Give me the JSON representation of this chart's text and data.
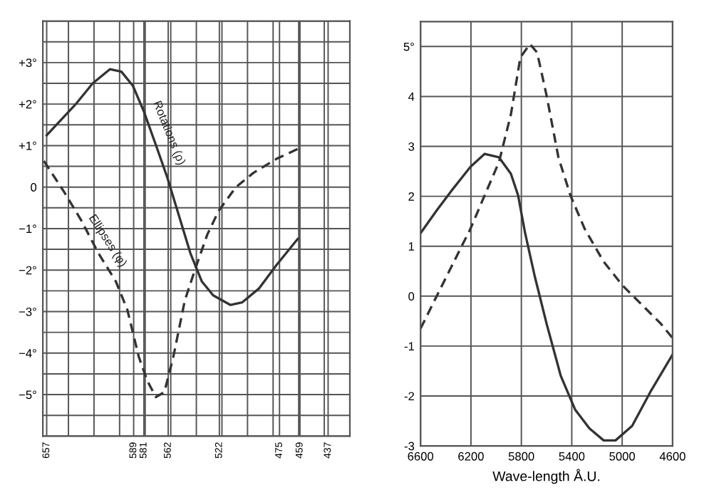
{
  "chart_data": [
    {
      "type": "line",
      "xlim": [
        660,
        420
      ],
      "ylim": [
        -6,
        4
      ],
      "grid": true,
      "xticks": [
        657,
        {
          "value": 640,
          "label": null
        },
        {
          "value": 620,
          "label": null
        },
        {
          "value": 600,
          "label": null
        },
        589,
        581,
        562,
        {
          "value": 580,
          "label": null
        },
        {
          "value": 560,
          "label": null
        },
        {
          "value": 540,
          "label": null
        },
        522,
        {
          "value": 520,
          "label": null
        },
        {
          "value": 500,
          "label": null
        },
        {
          "value": 480,
          "label": null
        },
        475,
        459,
        {
          "value": 460,
          "label": null
        },
        {
          "value": 440,
          "label": null
        },
        437
      ],
      "yticks": [
        {
          "value": -6,
          "label": null
        },
        {
          "value": -5.5,
          "label": null
        },
        {
          "value": -5,
          "label": "−5°"
        },
        {
          "value": -4.5,
          "label": null
        },
        {
          "value": -4,
          "label": "−4°"
        },
        {
          "value": -3.5,
          "label": null
        },
        {
          "value": -3,
          "label": "−3°"
        },
        {
          "value": -2.5,
          "label": null
        },
        {
          "value": -2,
          "label": "−2°"
        },
        {
          "value": -1.5,
          "label": null
        },
        {
          "value": -1,
          "label": "−1°"
        },
        {
          "value": -0.5,
          "label": null
        },
        0,
        {
          "value": 0.5,
          "label": null
        },
        {
          "value": 1,
          "label": "+1°"
        },
        {
          "value": 1.5,
          "label": null
        },
        {
          "value": 2,
          "label": "+2°"
        },
        {
          "value": 2.5,
          "label": null
        },
        {
          "value": 3,
          "label": "+3°"
        },
        {
          "value": 3.5,
          "label": null
        },
        {
          "value": 4,
          "label": null
        }
      ],
      "annotations": [
        "Rotations (ρ)",
        "Ellipses (φ)"
      ],
      "series": [
        {
          "color": "#333333",
          "line_style": "solid",
          "x": [
            657,
            634.5,
            621,
            607.6,
            598.6,
            589.6,
            581,
            571.7,
            562.7,
            553.7,
            544.7,
            535.8,
            526.8,
            513.3,
            504.3,
            490.9,
            477.4,
            460.8
          ],
          "values": [
            1.25,
            1.99,
            2.5,
            2.84,
            2.78,
            2.44,
            1.82,
            1.02,
            0.23,
            -0.68,
            -1.59,
            -2.27,
            -2.61,
            -2.84,
            -2.78,
            -2.44,
            -1.88,
            -1.25
          ]
        },
        {
          "color": "#333333",
          "line_style": "dashed",
          "x": [
            659.2,
            643.5,
            630,
            616.6,
            603,
            594,
            585,
            578.4,
            571.7,
            565,
            558,
            549,
            540.4,
            531.4,
            522.5,
            509,
            495.5,
            477.4,
            457.2
          ],
          "values": [
            0.63,
            -0.11,
            -0.8,
            -1.59,
            -2.27,
            -2.95,
            -4.09,
            -4.66,
            -5.06,
            -4.94,
            -4.09,
            -2.73,
            -1.93,
            -1.14,
            -0.57,
            0,
            0.34,
            0.68,
            0.97
          ]
        }
      ]
    },
    {
      "type": "line",
      "xlim": [
        6600,
        4600
      ],
      "ylim": [
        -3,
        5.5
      ],
      "grid": true,
      "xlabel": "Wave-length Å.U.",
      "xticks": [
        6600,
        6200,
        5800,
        5400,
        5000,
        4600
      ],
      "yticks": [
        -3,
        -2,
        -1,
        0,
        1,
        2,
        3,
        4,
        {
          "value": 5,
          "label": "5°"
        }
      ],
      "series": [
        {
          "color": "#333333",
          "line_style": "solid",
          "x": [
            6600,
            6468,
            6355,
            6204,
            6091,
            5977,
            5883,
            5826,
            5770,
            5694,
            5600,
            5487,
            5374,
            5260,
            5147,
            5053,
            4921,
            4770,
            4600
          ],
          "values": [
            1.26,
            1.73,
            2.11,
            2.59,
            2.85,
            2.78,
            2.45,
            2.02,
            1.26,
            0.4,
            -0.55,
            -1.6,
            -2.27,
            -2.65,
            -2.89,
            -2.89,
            -2.6,
            -1.89,
            -1.17
          ]
        },
        {
          "color": "#333333",
          "line_style": "dashed",
          "x": [
            6600,
            6468,
            6355,
            6204,
            6091,
            5977,
            5883,
            5808,
            5732,
            5675,
            5600,
            5506,
            5411,
            5298,
            5147,
            4996,
            4845,
            4694,
            4600
          ],
          "values": [
            -0.65,
            0.02,
            0.59,
            1.35,
            2.02,
            2.69,
            3.64,
            4.78,
            5.05,
            4.88,
            4.02,
            2.78,
            2.02,
            1.35,
            0.69,
            0.21,
            -0.17,
            -0.55,
            -0.84
          ]
        }
      ]
    }
  ]
}
